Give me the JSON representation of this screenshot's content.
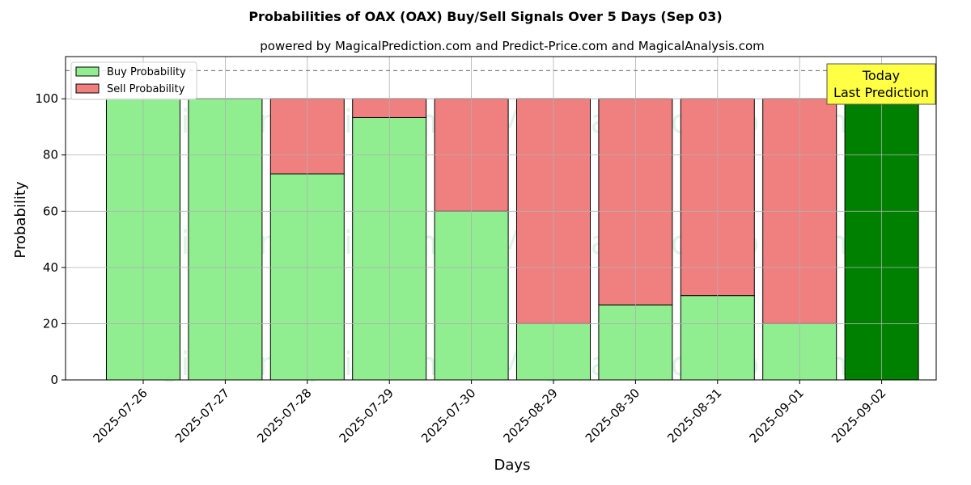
{
  "chart_data": {
    "type": "bar",
    "stacked": true,
    "title": "Probabilities of OAX (OAX) Buy/Sell Signals Over 5 Days (Sep 03)",
    "subtitle": "powered by MagicalPrediction.com and Predict-Price.com and MagicalAnalysis.com",
    "xlabel": "Days",
    "ylabel": "Probability",
    "ylim": [
      0,
      115
    ],
    "yticks": [
      0,
      20,
      40,
      60,
      80,
      100
    ],
    "reference_line": 110,
    "grid": true,
    "legend_position": "top-left",
    "categories": [
      "2025-07-26",
      "2025-07-27",
      "2025-07-28",
      "2025-07-29",
      "2025-07-30",
      "2025-08-29",
      "2025-08-30",
      "2025-08-31",
      "2025-09-01",
      "2025-09-02"
    ],
    "series": [
      {
        "name": "Buy Probability",
        "color": "#90ee90",
        "values": [
          100,
          100,
          73.3,
          93.3,
          60,
          20,
          26.7,
          30,
          20,
          100
        ]
      },
      {
        "name": "Sell Probability",
        "color": "#f08080",
        "values": [
          0,
          0,
          26.7,
          6.7,
          40,
          80,
          73.3,
          70,
          80,
          0
        ]
      }
    ],
    "highlight": {
      "index": 9,
      "color": "#008000"
    },
    "annotation": {
      "lines": [
        "Today",
        "Last Prediction"
      ],
      "color": "#ffff44"
    },
    "watermarks": [
      "MagicalAnalysis.com",
      "MagicalPrediction.com"
    ]
  }
}
